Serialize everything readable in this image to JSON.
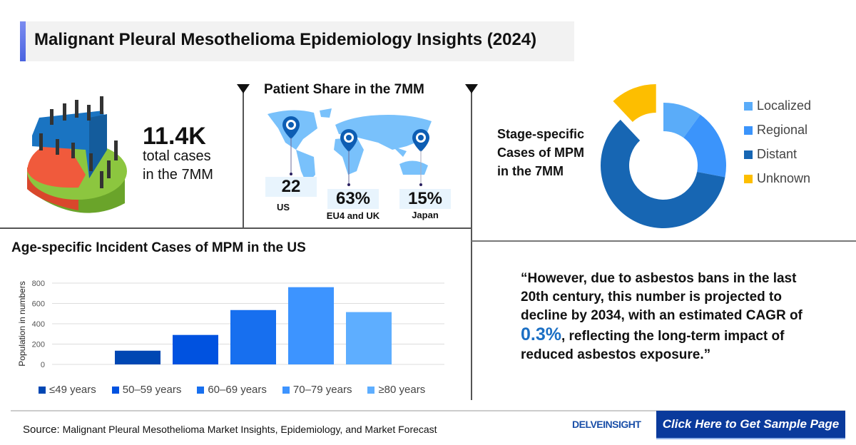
{
  "header": {
    "title": "Malignant Pleural Mesothelioma Epidemiology Insights (2024)"
  },
  "total": {
    "value": "11.4K",
    "line1": "total cases",
    "line2": "in the 7MM"
  },
  "patient_share": {
    "title": "Patient Share in the 7MM",
    "regions": [
      {
        "value": "22",
        "label": "US"
      },
      {
        "value": "63%",
        "label": "EU4 and UK"
      },
      {
        "value": "15%",
        "label": "Japan"
      }
    ]
  },
  "stage": {
    "title_lines": [
      "Stage-specific",
      "Cases of MPM",
      "in the 7MM"
    ]
  },
  "quote": {
    "before": "“However, due to asbestos bans in the last 20th century, this number is projected to decline by 2034, with an estimated CAGR of ",
    "cagr": "0.3%",
    "after": ", reflecting the long-term impact of reduced asbestos exposure.”"
  },
  "footer": {
    "source_label": "Source:",
    "source_text": "Malignant Pleural Mesothelioma Market Insights, Epidemiology, and Market Forecast",
    "logo": "DELVEINSIGHT",
    "cta": "Click Here to Get Sample Page"
  },
  "chart_data": [
    {
      "type": "bar",
      "title": "Age-specific Incident Cases of MPM in the US",
      "ylabel": "Population in numbers",
      "xlabel": "",
      "ylim": [
        0,
        800
      ],
      "yticks": [
        "0",
        "200",
        "400",
        "600",
        "800"
      ],
      "grid": true,
      "legend": "bottom",
      "categories": [
        "≤49 years",
        "50–59 years",
        "60–69 years",
        "70–79 years",
        "≥80 years"
      ],
      "values": [
        135,
        290,
        535,
        760,
        515
      ],
      "colors": [
        "#0047b3",
        "#0052e0",
        "#176fef",
        "#3d94ff",
        "#5eaeff"
      ]
    },
    {
      "type": "pie",
      "style": "donut",
      "legend": "right",
      "categories": [
        "Localized",
        "Regional",
        "Distant",
        "Unknown"
      ],
      "values": [
        10,
        18,
        60,
        12
      ],
      "exploded": "Unknown",
      "colors": [
        "#5aacf9",
        "#3b94fb",
        "#1766b3",
        "#fdbe00"
      ]
    }
  ]
}
